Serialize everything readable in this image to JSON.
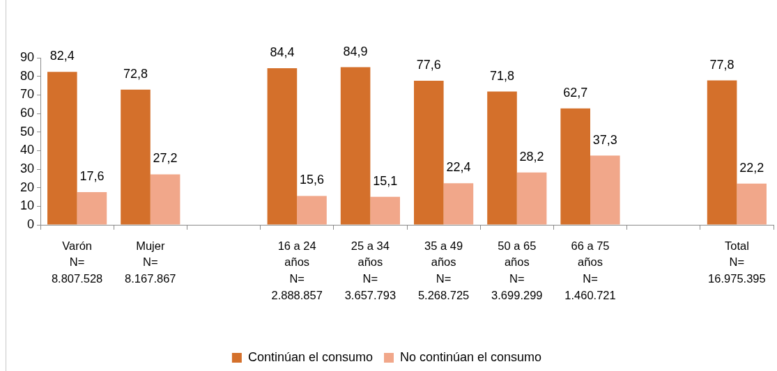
{
  "chart_data": {
    "type": "bar",
    "categories": [
      "Varón\nN=\n8.807.528",
      "Mujer\nN=\n8.167.867",
      null,
      "16 a 24\naños\nN=\n2.888.857",
      "25 a 34\naños\nN=\n3.657.793",
      "35 a 49\naños\nN=\n5.268.725",
      "50 a 65\naños\nN=\n3.699.299",
      "66 a 75\naños\nN=\n1.460.721",
      null,
      "Total\nN=\n16.975.395"
    ],
    "series": [
      {
        "name": "Continúan el consumo",
        "color": "#d4702b",
        "values": [
          82.4,
          72.8,
          null,
          84.4,
          84.9,
          77.6,
          71.8,
          62.7,
          null,
          77.8
        ],
        "value_labels": [
          "82,4",
          "72,8",
          null,
          "84,4",
          "84,9",
          "77,6",
          "71,8",
          "62,7",
          null,
          "77,8"
        ]
      },
      {
        "name": "No continúan el consumo",
        "color": "#f1a78a",
        "values": [
          17.6,
          27.2,
          null,
          15.6,
          15.1,
          22.4,
          28.2,
          37.3,
          null,
          22.2
        ],
        "value_labels": [
          "17,6",
          "27,2",
          null,
          "15,6",
          "15,1",
          "22,4",
          "28,2",
          "37,3",
          null,
          "22,2"
        ]
      }
    ],
    "ylim": [
      0,
      90
    ],
    "yticks": [
      0,
      10,
      20,
      30,
      40,
      50,
      60,
      70,
      80,
      90
    ],
    "grid": false,
    "legend": "bottom"
  }
}
